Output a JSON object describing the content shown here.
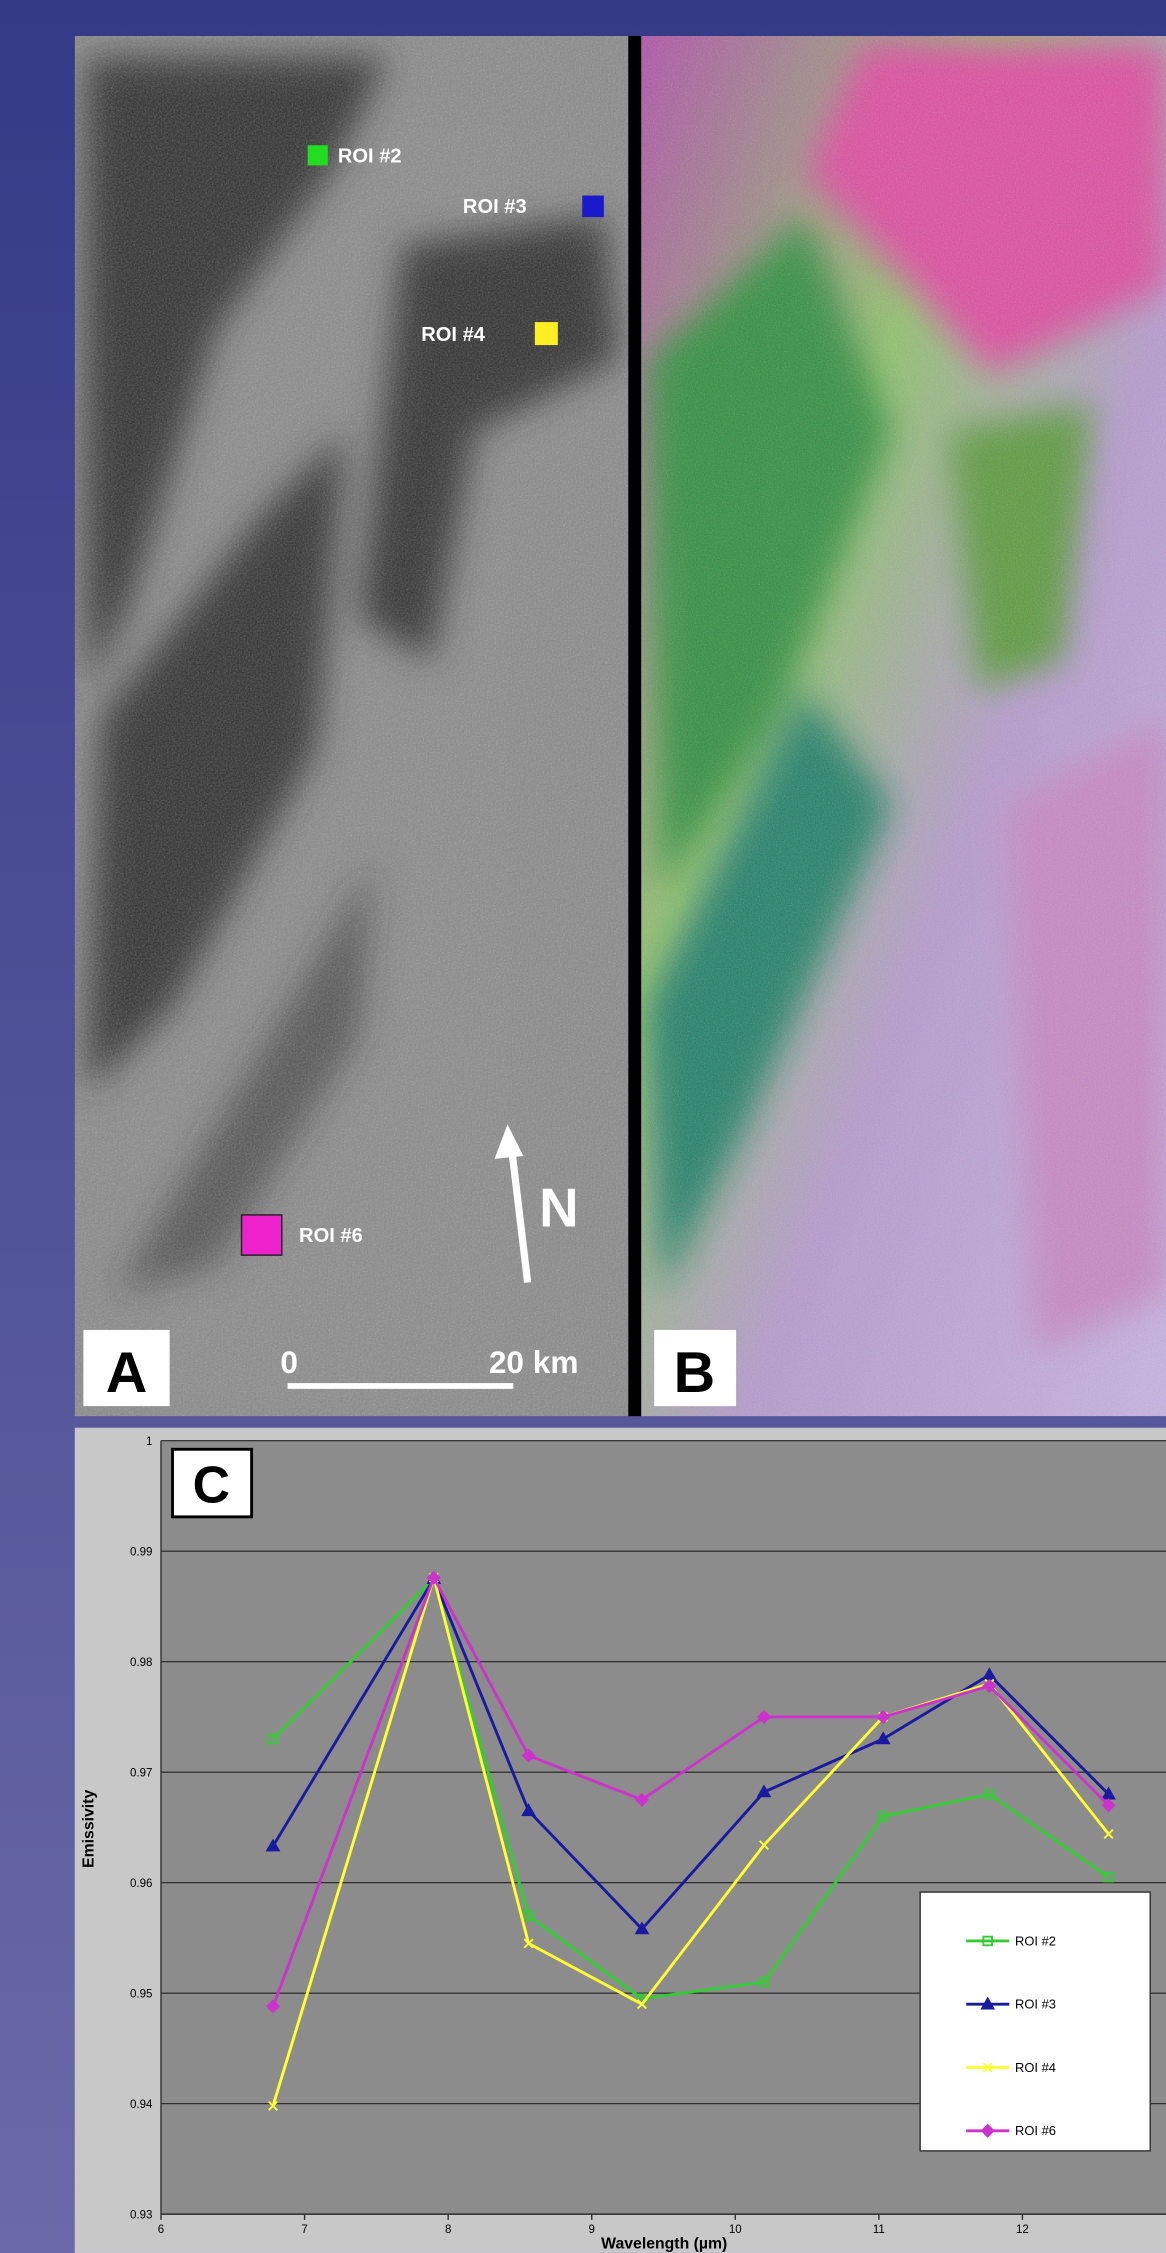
{
  "panels": {
    "a": {
      "label": "A",
      "rois": [
        "ROI #2",
        "ROI #3",
        "ROI #4",
        "ROI #6"
      ],
      "north": "N",
      "scale": [
        "0",
        "20 km"
      ]
    },
    "b": {
      "label": "B"
    }
  },
  "chart_data": {
    "type": "line",
    "panel_label": "C",
    "x_label": "Wavelength (µm)",
    "y_label": "Emissivity",
    "x": [
      6.78,
      7.9,
      8.56,
      9.35,
      10.2,
      11.03,
      11.77,
      12.6
    ],
    "series": [
      {
        "name": "ROI #2",
        "color": "#33cc33",
        "marker": "square",
        "values": [
          0.973,
          0.9875,
          0.957,
          0.9495,
          0.951,
          0.966,
          0.968,
          0.9605
        ]
      },
      {
        "name": "ROI #3",
        "color": "#1a1aa0",
        "marker": "triangle",
        "values": [
          0.9633,
          0.9875,
          0.9665,
          0.9558,
          0.9682,
          0.973,
          0.9788,
          0.968
        ]
      },
      {
        "name": "ROI #4",
        "color": "#ffff33",
        "marker": "x",
        "values": [
          0.9398,
          0.9876,
          0.9545,
          0.949,
          0.9634,
          0.975,
          0.978,
          0.9644
        ]
      },
      {
        "name": "ROI #6",
        "color": "#cc33cc",
        "marker": "diamond",
        "values": [
          0.9488,
          0.9876,
          0.9715,
          0.9675,
          0.975,
          0.975,
          0.9778,
          0.967
        ]
      }
    ],
    "xlim": [
      6,
      13
    ],
    "xticks": [
      6,
      7,
      8,
      9,
      10,
      11,
      12
    ],
    "ylim": [
      0.93,
      1
    ],
    "yticks": [
      0.93,
      0.94,
      0.95,
      0.96,
      0.97,
      0.98,
      0.99,
      1
    ],
    "grid": true
  }
}
